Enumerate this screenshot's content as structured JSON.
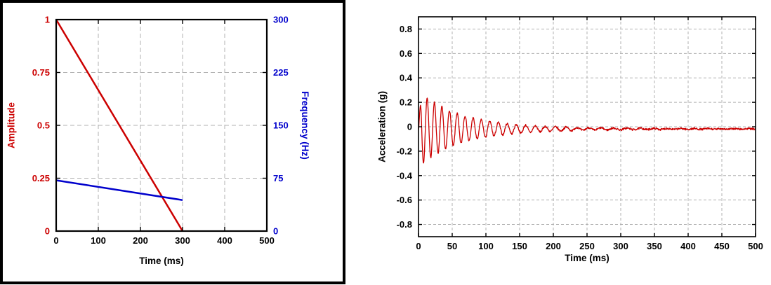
{
  "page": {
    "background": "#ffffff"
  },
  "chart_data": [
    {
      "name": "sweep-profile-chart",
      "type": "line",
      "xlabel": "Time (ms)",
      "x": {
        "lim": [
          0,
          500
        ],
        "ticks": [
          0,
          100,
          200,
          300,
          400,
          500
        ],
        "color": "#000000"
      },
      "left": {
        "label": "Amplitude",
        "lim": [
          0,
          1
        ],
        "ticks": [
          0,
          0.25,
          0.5,
          0.75,
          1
        ],
        "color": "#cc0000"
      },
      "right": {
        "label": "Frequency (Hz)",
        "lim": [
          0,
          300
        ],
        "ticks": [
          0,
          75,
          150,
          225,
          300
        ],
        "color": "#0000cc"
      },
      "grid": {
        "on": true,
        "color": "#b0b0b0",
        "dash": "6,4"
      },
      "legend": "none",
      "series": [
        {
          "name": "amplitude-line",
          "legend": "Amplitude",
          "axis": "left",
          "color": "#cc0000",
          "width": 2.5,
          "points": [
            [
              0,
              1
            ],
            [
              300,
              0
            ]
          ]
        },
        {
          "name": "frequency-line",
          "legend": "Frequency (Hz)",
          "axis": "right",
          "color": "#0000cc",
          "width": 2.5,
          "points": [
            [
              0,
              72
            ],
            [
              300,
              44
            ]
          ]
        }
      ]
    },
    {
      "name": "acceleration-chart",
      "type": "line",
      "xlabel": "Time (ms)",
      "x": {
        "lim": [
          0,
          500
        ],
        "ticks": [
          0,
          50,
          100,
          150,
          200,
          250,
          300,
          350,
          400,
          450,
          500
        ],
        "color": "#000000"
      },
      "left": {
        "label": "Acceleration (g)",
        "lim": [
          -0.9,
          0.9
        ],
        "ticks": [
          -0.8,
          -0.6,
          -0.4,
          -0.2,
          0,
          0.2,
          0.4,
          0.6,
          0.8
        ],
        "color": "#000000"
      },
      "grid": {
        "on": true,
        "color": "#b0b0b0",
        "dash": "4,3"
      },
      "legend": "none",
      "series": [
        {
          "name": "acceleration-trace",
          "legend": "Acceleration (g)",
          "axis": "left",
          "color": "#cc0000",
          "width": 1.3,
          "synth": {
            "description": "decaying swept-sine burst, values estimated from plot",
            "step_ms": 0.5,
            "duration_ms": 500,
            "attack_ms": 4,
            "peak": 0.29,
            "decay_tau_ms": 60,
            "tail_amp": 0.022,
            "tail_tau_ms": 200,
            "freq_start_hz": 95,
            "freq_end_hz": 50,
            "sweep_ms": 300,
            "noise": 0.008,
            "baseline": -0.018,
            "seed": 7
          }
        }
      ]
    }
  ]
}
